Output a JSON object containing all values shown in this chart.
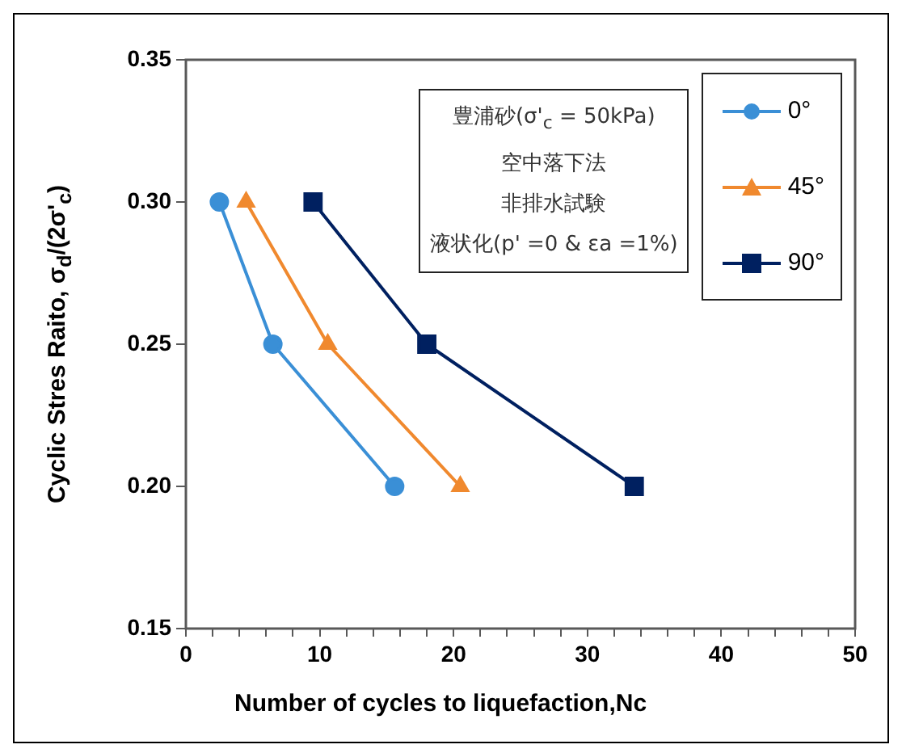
{
  "chart_data": {
    "type": "line",
    "xlabel": "Number of cycles to liquefaction,Nc",
    "ylabel": "Cyclic Stres Raito, σ$_{d}$/(2σ'$_{c}$)",
    "annotations": [
      "豊浦砂(σ'$_{c}$ = 50kPa)",
      "空中落下法",
      "非排水試験",
      "液状化(p' =0 & εa =1%)"
    ],
    "xlim": [
      0,
      50
    ],
    "ylim": [
      0.15,
      0.35
    ],
    "xticks": [
      0,
      {
        "value": 2,
        "label": null
      },
      {
        "value": 4,
        "label": null
      },
      {
        "value": 6,
        "label": null
      },
      {
        "value": 8,
        "label": null
      },
      10,
      {
        "value": 12,
        "label": null
      },
      {
        "value": 14,
        "label": null
      },
      {
        "value": 16,
        "label": null
      },
      {
        "value": 18,
        "label": null
      },
      20,
      {
        "value": 22,
        "label": null
      },
      {
        "value": 24,
        "label": null
      },
      {
        "value": 26,
        "label": null
      },
      {
        "value": 28,
        "label": null
      },
      30,
      {
        "value": 32,
        "label": null
      },
      {
        "value": 34,
        "label": null
      },
      {
        "value": 36,
        "label": null
      },
      {
        "value": 38,
        "label": null
      },
      40,
      {
        "value": 42,
        "label": null
      },
      {
        "value": 44,
        "label": null
      },
      {
        "value": 46,
        "label": null
      },
      {
        "value": 48,
        "label": null
      },
      50
    ],
    "yticks": [
      {
        "value": 0.15,
        "label": "0.15"
      },
      {
        "value": 0.2,
        "label": "0.20"
      },
      {
        "value": 0.25,
        "label": "0.25"
      },
      {
        "value": 0.3,
        "label": "0.30"
      },
      {
        "value": 0.35,
        "label": "0.35"
      }
    ],
    "legend": "top right",
    "series": [
      {
        "name": "0°",
        "color": "#3a8fd6",
        "marker": "circle",
        "x": [
          2.5,
          6.5,
          15.6
        ],
        "values": [
          0.3,
          0.25,
          0.2
        ]
      },
      {
        "name": "45°",
        "color": "#f0892e",
        "marker": "triangle",
        "x": [
          4.5,
          10.6,
          20.5
        ],
        "values": [
          0.3,
          0.25,
          0.2
        ]
      },
      {
        "name": "90°",
        "color": "#002060",
        "marker": "square",
        "x": [
          9.5,
          18,
          33.5
        ],
        "values": [
          0.3,
          0.25,
          0.2
        ]
      }
    ]
  }
}
